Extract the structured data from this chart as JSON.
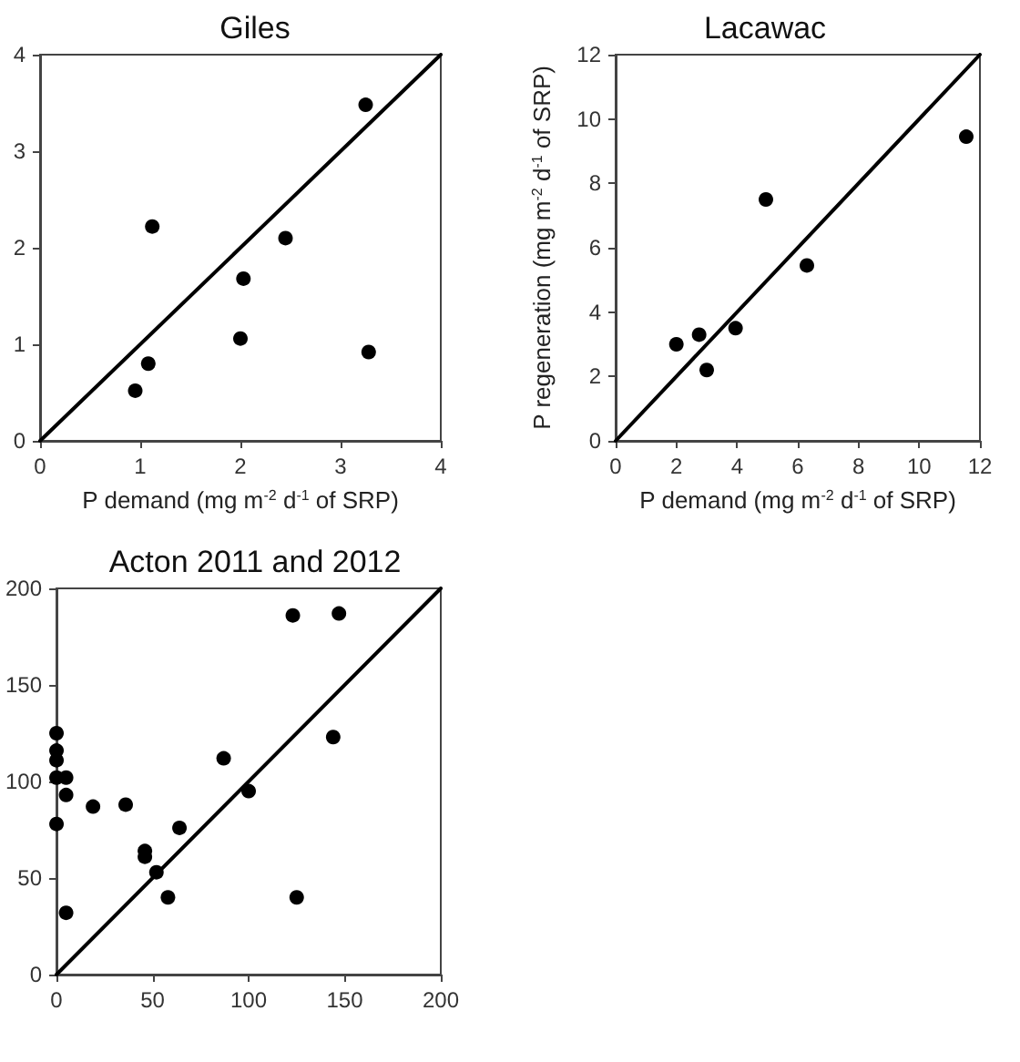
{
  "chart_data": [
    {
      "type": "scatter",
      "title": "Giles",
      "xlabel": "P demand (mg m$^{-2}$ d$^{-1}$ of SRP)",
      "xlim": [
        0,
        4
      ],
      "ylim": [
        0,
        4
      ],
      "xticks": [
        0,
        1,
        2,
        3,
        4
      ],
      "yticks": [
        0,
        1,
        2,
        3,
        4
      ],
      "grid": false,
      "series": [
        {
          "marker": "circle",
          "color": "#000000",
          "x": [
            0.95,
            1.08,
            1.12,
            2.0,
            2.03,
            2.45,
            3.25,
            3.28
          ],
          "values": [
            0.52,
            0.8,
            2.22,
            1.06,
            1.68,
            2.1,
            3.48,
            0.92
          ]
        },
        {
          "type": "line",
          "marker": "none",
          "line_style": "solid",
          "color": "#000000",
          "x": [
            0,
            4
          ],
          "values": [
            0,
            4
          ]
        }
      ]
    },
    {
      "type": "scatter",
      "title": "Lacawac",
      "xlabel": "P demand (mg m$^{-2}$ d$^{-1}$ of SRP)",
      "ylabel": "P regeneration (mg m$^{-2}$ d$^{-1}$ of SRP)",
      "xlim": [
        0,
        12
      ],
      "ylim": [
        0,
        12
      ],
      "xticks": [
        0,
        2,
        4,
        6,
        8,
        10,
        12
      ],
      "yticks": [
        0,
        2,
        4,
        6,
        8,
        10,
        12
      ],
      "grid": false,
      "series": [
        {
          "marker": "circle",
          "color": "#000000",
          "x": [
            2.0,
            2.75,
            3.0,
            3.95,
            4.95,
            6.3,
            11.55
          ],
          "values": [
            3.0,
            3.3,
            2.2,
            3.5,
            7.5,
            5.45,
            9.45
          ]
        },
        {
          "type": "line",
          "marker": "none",
          "line_style": "solid",
          "color": "#000000",
          "x": [
            0,
            12
          ],
          "values": [
            0,
            12
          ]
        }
      ]
    },
    {
      "type": "scatter",
      "title": "Acton 2011 and 2012",
      "xlim": [
        0,
        200
      ],
      "ylim": [
        0,
        200
      ],
      "xticks": [
        0,
        50,
        100,
        150,
        200
      ],
      "yticks": [
        0,
        50,
        100,
        150,
        200
      ],
      "grid": false,
      "series": [
        {
          "marker": "circle",
          "color": "#000000",
          "x": [
            0,
            0,
            0,
            0,
            5,
            5,
            0,
            5,
            19,
            36,
            46,
            46,
            52,
            58,
            64,
            87,
            100,
            123,
            147,
            144,
            125
          ],
          "values": [
            125,
            116,
            111,
            102,
            102,
            93,
            78,
            32,
            87,
            88,
            64,
            61,
            53,
            40,
            76,
            112,
            95,
            186,
            187,
            123,
            40
          ]
        },
        {
          "type": "line",
          "marker": "none",
          "line_style": "solid",
          "color": "#000000",
          "x": [
            0,
            200
          ],
          "values": [
            0,
            200
          ]
        }
      ]
    }
  ]
}
